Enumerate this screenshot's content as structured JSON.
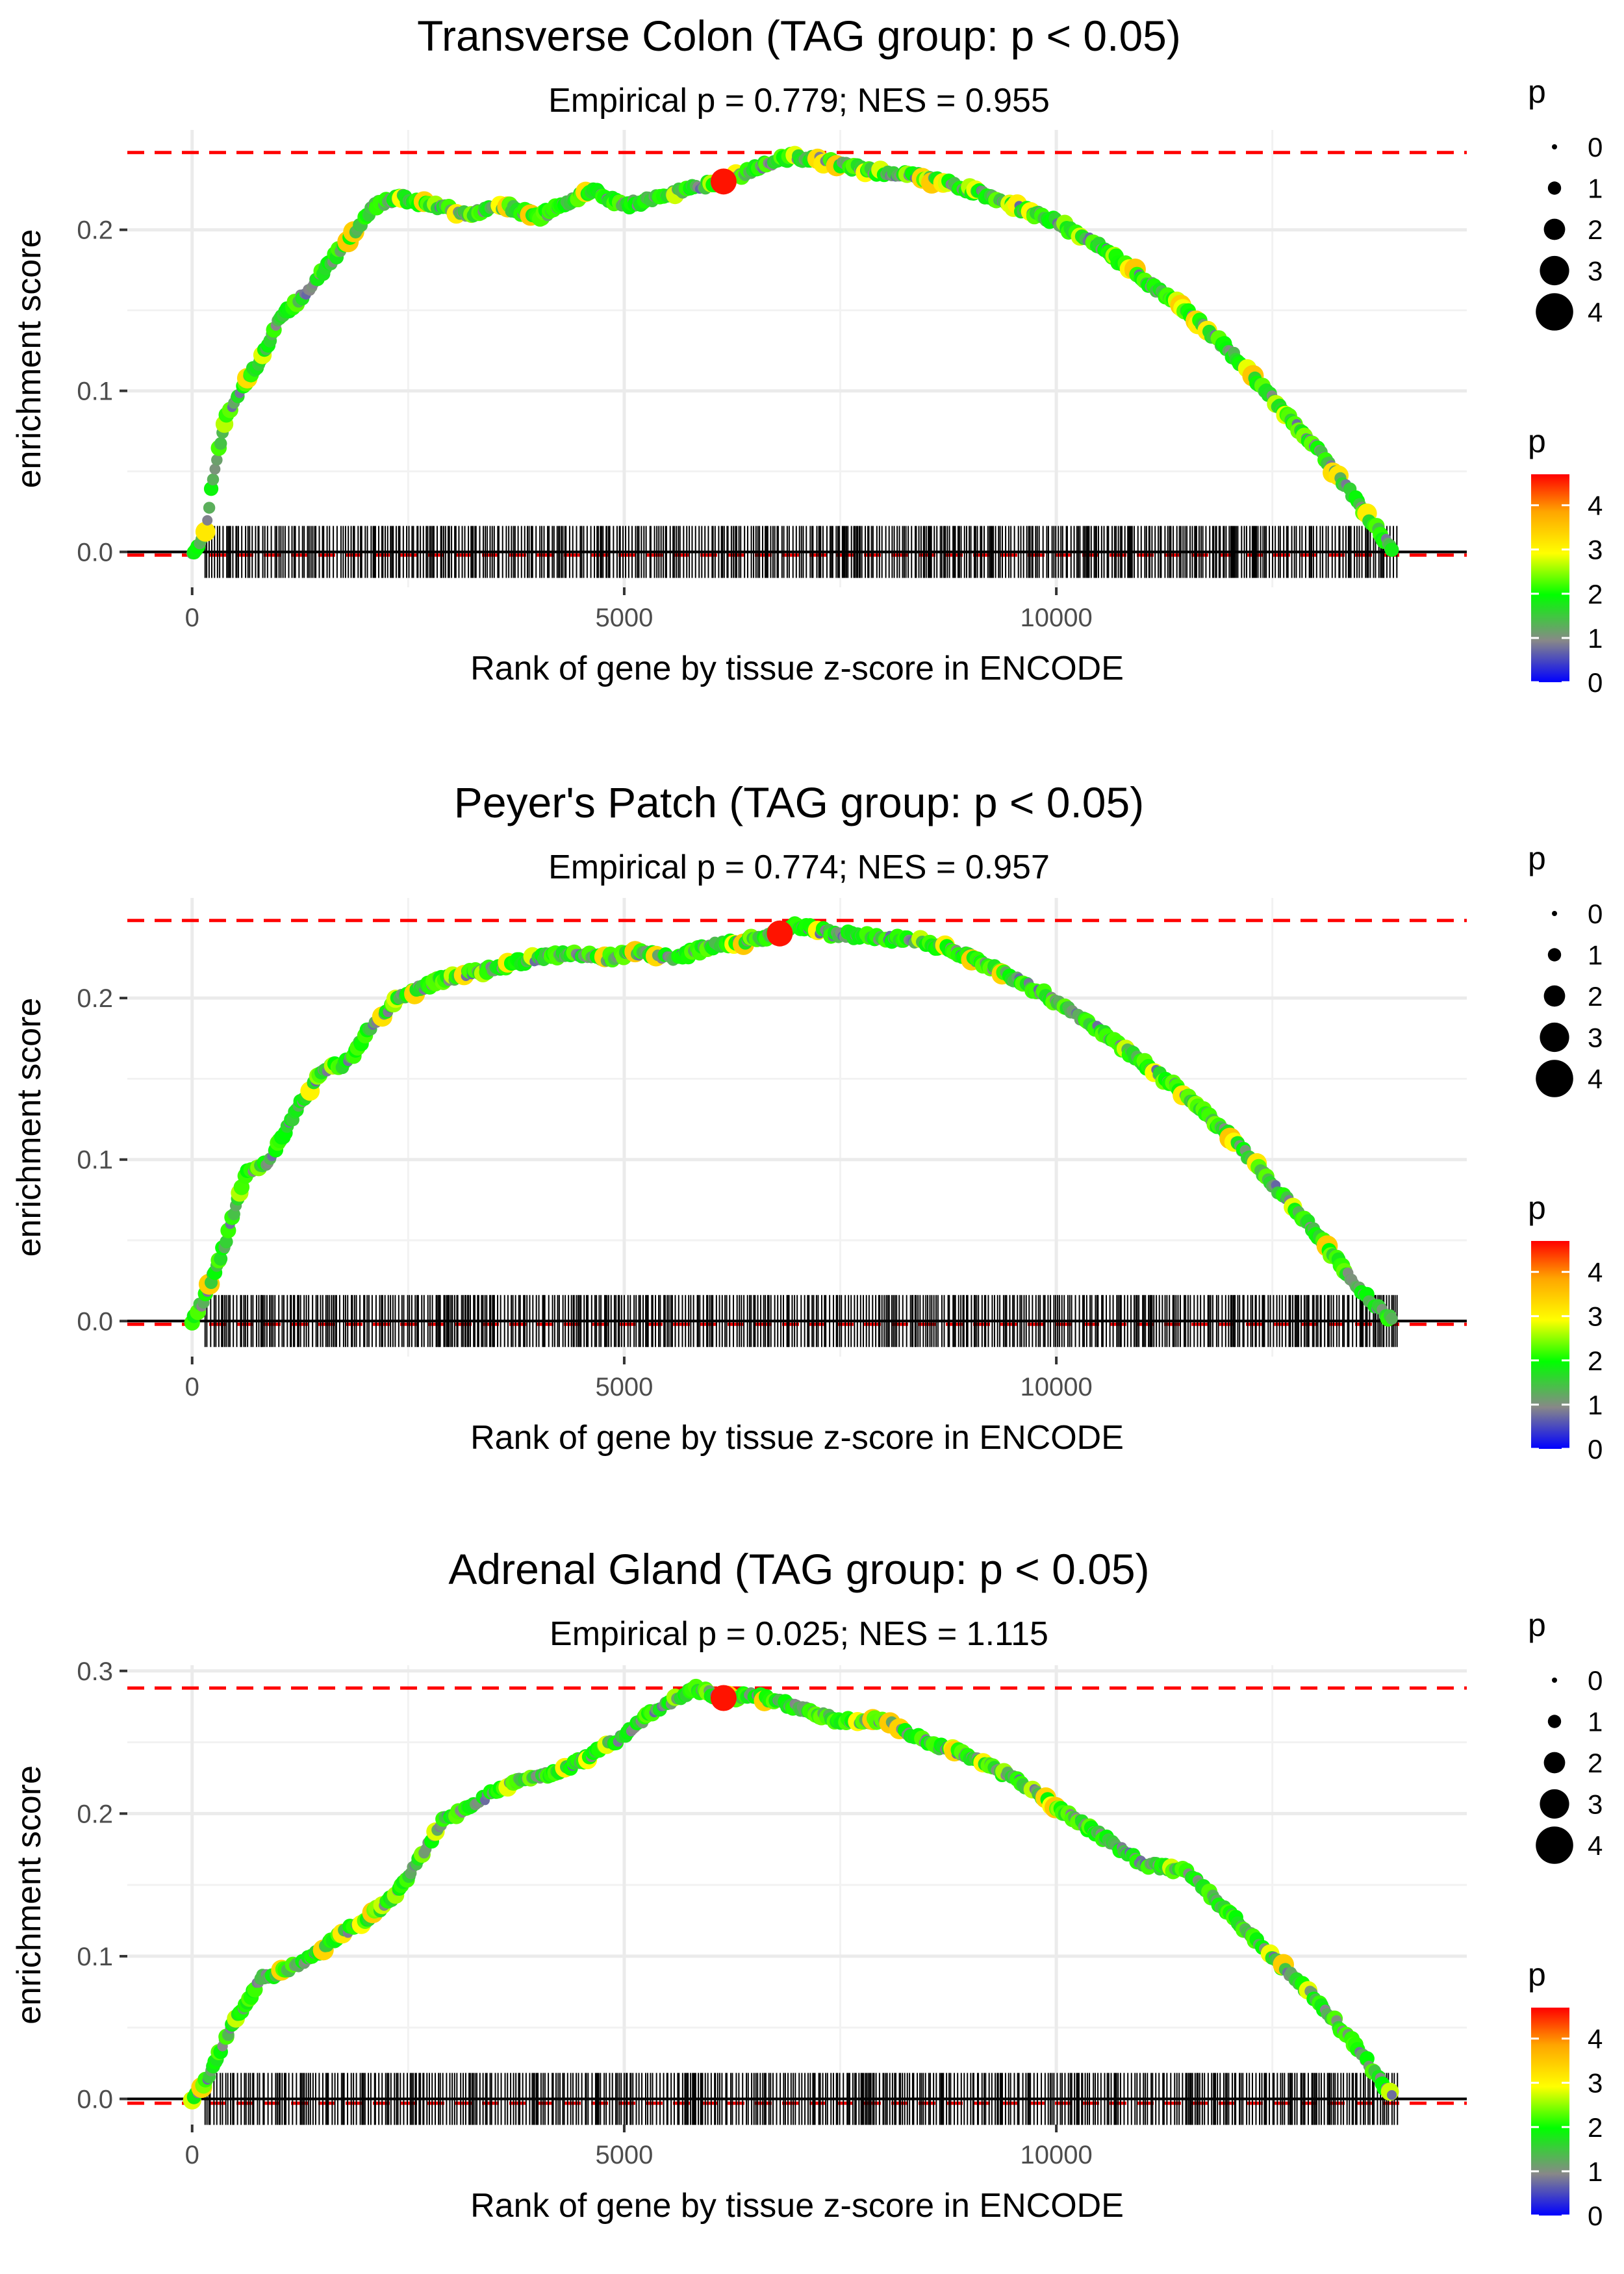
{
  "chart_data": [
    {
      "type": "scatter",
      "title": "Transverse Colon (TAG group: p < 0.05)",
      "subtitle": "Empirical p = 0.779; NES = 0.955",
      "xlabel": "Rank of gene by tissue z-score in ENCODE",
      "ylabel": "enrichment score",
      "xlim": [
        -750,
        14750
      ],
      "ylim": [
        -0.022,
        0.262
      ],
      "x_ticks": [
        0,
        5000,
        10000
      ],
      "x_tick_labels": [
        "0",
        "5000",
        "10000"
      ],
      "y_ticks": [
        0.0,
        0.1,
        0.2
      ],
      "y_tick_labels": [
        "0.0",
        "0.1",
        "0.2"
      ],
      "max_es": 0.248,
      "min_es": -0.002,
      "peak_rank": 6150,
      "peak_p": 4.6,
      "curve": [
        [
          0,
          0.0
        ],
        [
          150,
          0.01
        ],
        [
          250,
          0.05
        ],
        [
          400,
          0.085
        ],
        [
          550,
          0.1
        ],
        [
          800,
          0.12
        ],
        [
          1000,
          0.145
        ],
        [
          1300,
          0.16
        ],
        [
          1600,
          0.18
        ],
        [
          1900,
          0.2
        ],
        [
          2100,
          0.215
        ],
        [
          2400,
          0.22
        ],
        [
          2800,
          0.215
        ],
        [
          3200,
          0.21
        ],
        [
          3600,
          0.215
        ],
        [
          4000,
          0.208
        ],
        [
          4300,
          0.215
        ],
        [
          4600,
          0.225
        ],
        [
          5000,
          0.215
        ],
        [
          5400,
          0.22
        ],
        [
          5700,
          0.225
        ],
        [
          6150,
          0.23
        ],
        [
          6500,
          0.238
        ],
        [
          6900,
          0.245
        ],
        [
          7300,
          0.243
        ],
        [
          7800,
          0.237
        ],
        [
          8400,
          0.233
        ],
        [
          9000,
          0.225
        ],
        [
          9500,
          0.215
        ],
        [
          10000,
          0.205
        ],
        [
          10500,
          0.19
        ],
        [
          11000,
          0.17
        ],
        [
          11500,
          0.15
        ],
        [
          12000,
          0.125
        ],
        [
          12500,
          0.095
        ],
        [
          13000,
          0.065
        ],
        [
          13500,
          0.03
        ],
        [
          13900,
          0.0
        ]
      ],
      "size_legend": {
        "title": "p",
        "labels": [
          "0",
          "1",
          "2",
          "3",
          "4"
        ]
      },
      "color_legend": {
        "title": "p",
        "labels": [
          "0",
          "1",
          "2",
          "3",
          "4"
        ],
        "min": 0,
        "max": 4.7
      }
    },
    {
      "type": "scatter",
      "title": "Peyer's Patch (TAG group: p < 0.05)",
      "subtitle": "Empirical p = 0.774; NES = 0.957",
      "xlabel": "Rank of gene by tissue z-score in ENCODE",
      "ylabel": "enrichment score",
      "xlim": [
        -750,
        14750
      ],
      "ylim": [
        -0.022,
        0.262
      ],
      "x_ticks": [
        0,
        5000,
        10000
      ],
      "x_tick_labels": [
        "0",
        "5000",
        "10000"
      ],
      "y_ticks": [
        0.0,
        0.1,
        0.2
      ],
      "y_tick_labels": [
        "0.0",
        "0.1",
        "0.2"
      ],
      "max_es": 0.248,
      "min_es": -0.002,
      "peak_rank": 6800,
      "peak_p": 4.6,
      "curve": [
        [
          0,
          0.0
        ],
        [
          150,
          0.015
        ],
        [
          300,
          0.035
        ],
        [
          450,
          0.06
        ],
        [
          600,
          0.09
        ],
        [
          900,
          0.1
        ],
        [
          1200,
          0.13
        ],
        [
          1500,
          0.155
        ],
        [
          1800,
          0.16
        ],
        [
          2100,
          0.185
        ],
        [
          2400,
          0.2
        ],
        [
          2800,
          0.21
        ],
        [
          3200,
          0.215
        ],
        [
          3600,
          0.22
        ],
        [
          4000,
          0.225
        ],
        [
          4400,
          0.228
        ],
        [
          4800,
          0.225
        ],
        [
          5200,
          0.228
        ],
        [
          5600,
          0.225
        ],
        [
          6000,
          0.232
        ],
        [
          6400,
          0.235
        ],
        [
          6800,
          0.24
        ],
        [
          7000,
          0.245
        ],
        [
          7400,
          0.24
        ],
        [
          7900,
          0.238
        ],
        [
          8400,
          0.235
        ],
        [
          8800,
          0.23
        ],
        [
          9200,
          0.22
        ],
        [
          9600,
          0.21
        ],
        [
          10000,
          0.198
        ],
        [
          10500,
          0.18
        ],
        [
          11000,
          0.16
        ],
        [
          11500,
          0.14
        ],
        [
          12000,
          0.115
        ],
        [
          12500,
          0.085
        ],
        [
          13000,
          0.055
        ],
        [
          13500,
          0.02
        ],
        [
          13900,
          0.0
        ]
      ],
      "size_legend": {
        "title": "p",
        "labels": [
          "0",
          "1",
          "2",
          "3",
          "4"
        ]
      },
      "color_legend": {
        "title": "p",
        "labels": [
          "0",
          "1",
          "2",
          "3",
          "4"
        ],
        "min": 0,
        "max": 4.7
      }
    },
    {
      "type": "scatter",
      "title": "Adrenal Gland (TAG group: p < 0.05)",
      "subtitle": "Empirical p = 0.025; NES = 1.115",
      "xlabel": "Rank of gene by tissue z-score in ENCODE",
      "ylabel": "enrichment score",
      "xlim": [
        -750,
        14750
      ],
      "ylim": [
        -0.018,
        0.304
      ],
      "x_ticks": [
        0,
        5000,
        10000
      ],
      "x_tick_labels": [
        "0",
        "5000",
        "10000"
      ],
      "y_ticks": [
        0.0,
        0.1,
        0.2,
        0.3
      ],
      "y_tick_labels": [
        "0.0",
        "0.1",
        "0.2",
        "0.3"
      ],
      "max_es": 0.288,
      "min_es": -0.003,
      "peak_rank": 6150,
      "peak_p": 4.6,
      "curve": [
        [
          0,
          0.0
        ],
        [
          200,
          0.015
        ],
        [
          400,
          0.045
        ],
        [
          600,
          0.065
        ],
        [
          800,
          0.085
        ],
        [
          1100,
          0.09
        ],
        [
          1400,
          0.1
        ],
        [
          1700,
          0.115
        ],
        [
          2000,
          0.125
        ],
        [
          2300,
          0.14
        ],
        [
          2600,
          0.165
        ],
        [
          2900,
          0.195
        ],
        [
          3200,
          0.205
        ],
        [
          3500,
          0.215
        ],
        [
          3800,
          0.225
        ],
        [
          4200,
          0.228
        ],
        [
          4600,
          0.24
        ],
        [
          5000,
          0.255
        ],
        [
          5300,
          0.27
        ],
        [
          5600,
          0.28
        ],
        [
          5800,
          0.288
        ],
        [
          6150,
          0.281
        ],
        [
          6500,
          0.283
        ],
        [
          7000,
          0.275
        ],
        [
          7500,
          0.265
        ],
        [
          8000,
          0.265
        ],
        [
          8500,
          0.25
        ],
        [
          9000,
          0.24
        ],
        [
          9500,
          0.225
        ],
        [
          10000,
          0.205
        ],
        [
          10500,
          0.185
        ],
        [
          11000,
          0.165
        ],
        [
          11500,
          0.16
        ],
        [
          12000,
          0.13
        ],
        [
          12500,
          0.1
        ],
        [
          13000,
          0.07
        ],
        [
          13500,
          0.035
        ],
        [
          13900,
          0.0
        ]
      ],
      "size_legend": {
        "title": "p",
        "labels": [
          "0",
          "1",
          "2",
          "3",
          "4"
        ]
      },
      "color_legend": {
        "title": "p",
        "labels": [
          "0",
          "1",
          "2",
          "3",
          "4"
        ],
        "min": 0,
        "max": 4.7
      }
    }
  ]
}
